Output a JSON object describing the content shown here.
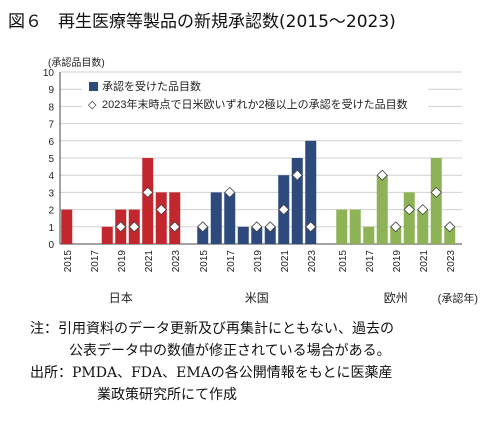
{
  "title": {
    "number": "図６",
    "text": "再生医療等製品の新規承認数(2015～2023)"
  },
  "notes": {
    "note_line1": "注：引用資料のデータ更新及び再集計にともない、過去の",
    "note_line2": "公表データ中の数値が修正されている場合がある。",
    "source_line1": "出所：PMDA、FDA、EMAの各公開情報をもとに医薬産",
    "source_line2": "業政策研究所にて作成"
  },
  "colors": {
    "japan": "#c1272d",
    "us": "#2e4a7d",
    "eu": "#8db356",
    "marker_fill": "#ffffff",
    "marker_stroke": "#444444",
    "grid": "#d0d0d0",
    "axis": "#444444"
  },
  "chart_data": {
    "type": "bar",
    "ylabel": "(承認品目数)",
    "ylim": [
      0,
      10
    ],
    "yticks": [
      0,
      1,
      2,
      3,
      4,
      5,
      6,
      7,
      8,
      9,
      10
    ],
    "xlabel_suffix": "(承認年)",
    "categories": [
      "2015",
      "2016",
      "2017",
      "2018",
      "2019",
      "2020",
      "2021",
      "2022",
      "2023"
    ],
    "tick_labels_shown": [
      "2015",
      "2017",
      "2019",
      "2021",
      "2023"
    ],
    "legend": {
      "bar": "承認を受けた品目数",
      "marker": "2023年末時点で日米欧いずれか2極以上の承認を受けた品目数",
      "marker_symbol": "◇"
    },
    "groups": [
      {
        "name": "日本",
        "color_key": "japan",
        "values": [
          2,
          0,
          0,
          1,
          2,
          2,
          5,
          3,
          3
        ],
        "multi_region": [
          null,
          null,
          null,
          null,
          1,
          1,
          3,
          2,
          1
        ]
      },
      {
        "name": "米国",
        "color_key": "us",
        "values": [
          1,
          3,
          3,
          1,
          1,
          1,
          4,
          5,
          6
        ],
        "multi_region": [
          1,
          null,
          3,
          null,
          1,
          1,
          2,
          4,
          1
        ]
      },
      {
        "name": "欧州",
        "color_key": "eu",
        "values": [
          2,
          2,
          1,
          4,
          1,
          3,
          2,
          5,
          1
        ],
        "multi_region": [
          null,
          null,
          null,
          4,
          1,
          2,
          2,
          3,
          1
        ]
      }
    ]
  }
}
